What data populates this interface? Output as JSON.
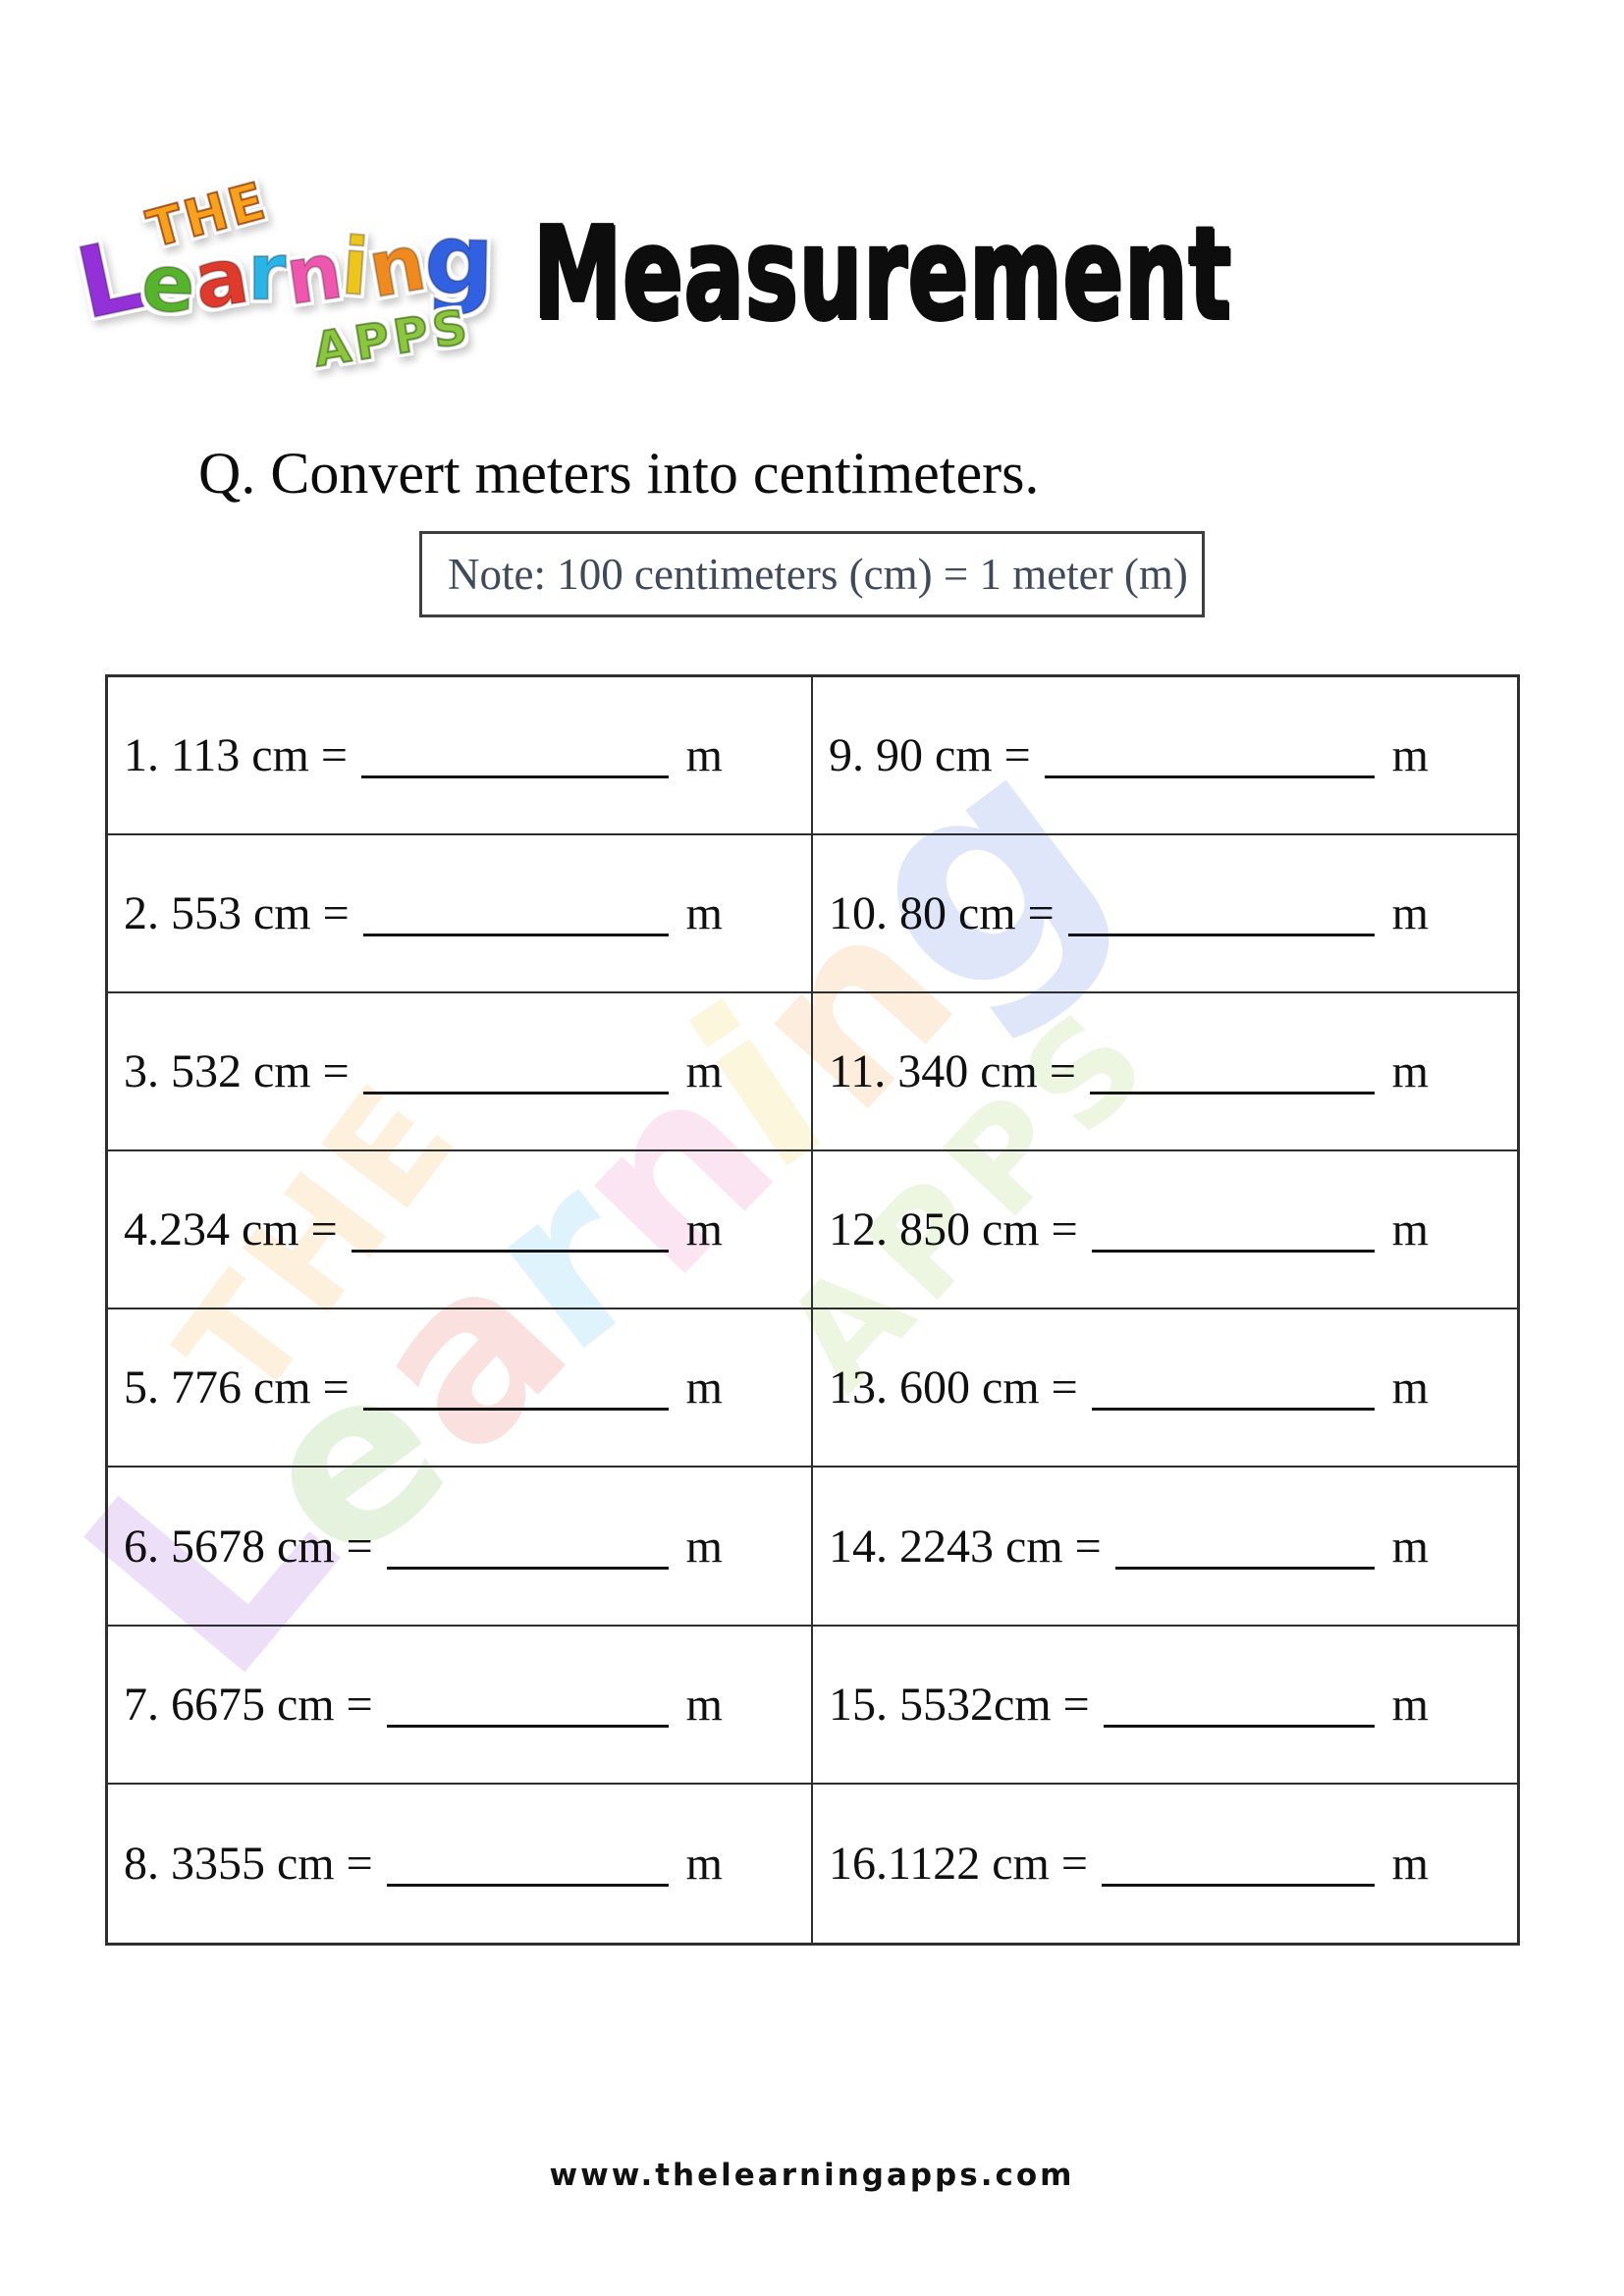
{
  "page": {
    "background": "#ffffff"
  },
  "logo": {
    "line1": "THE",
    "line1_color": "#f7a21c",
    "learning_letters": [
      {
        "ch": "L",
        "color": "#9330d8"
      },
      {
        "ch": "e",
        "color": "#57b32c"
      },
      {
        "ch": "a",
        "color": "#e03a2c"
      },
      {
        "ch": "r",
        "color": "#2ab5e9"
      },
      {
        "ch": "n",
        "color": "#ef57ae"
      },
      {
        "ch": "i",
        "color": "#eec51d"
      },
      {
        "ch": "n",
        "color": "#ee8a1e"
      },
      {
        "ch": "g",
        "color": "#3161e0"
      }
    ],
    "line3": "APPS",
    "line3_color": "#8cc63e"
  },
  "header": {
    "title": "Measurement",
    "title_color": "#0d0d0d"
  },
  "question": {
    "text": "Q. Convert meters into centimeters."
  },
  "note": {
    "text": "Note: 100 centimeters (cm) = 1 meter (m)",
    "text_color": "#3f4a5a",
    "border_color": "#3f3f3f"
  },
  "worksheet": {
    "unit": "m",
    "border_color": "#2e2e2e",
    "left_items": [
      "1. 113 cm =",
      "2. 553 cm =",
      "3. 532 cm =",
      "4.234 cm =",
      "5. 776 cm =",
      "6. 5678 cm =",
      "7. 6675 cm =",
      "8. 3355 cm ="
    ],
    "right_items": [
      "9. 90 cm =",
      "10. 80 cm =",
      "11. 340 cm =",
      "12. 850 cm =",
      "13. 600 cm =",
      "14. 2243 cm =",
      "15. 5532cm =",
      "16.1122 cm ="
    ]
  },
  "footer": {
    "url": "www.thelearningapps.com"
  }
}
